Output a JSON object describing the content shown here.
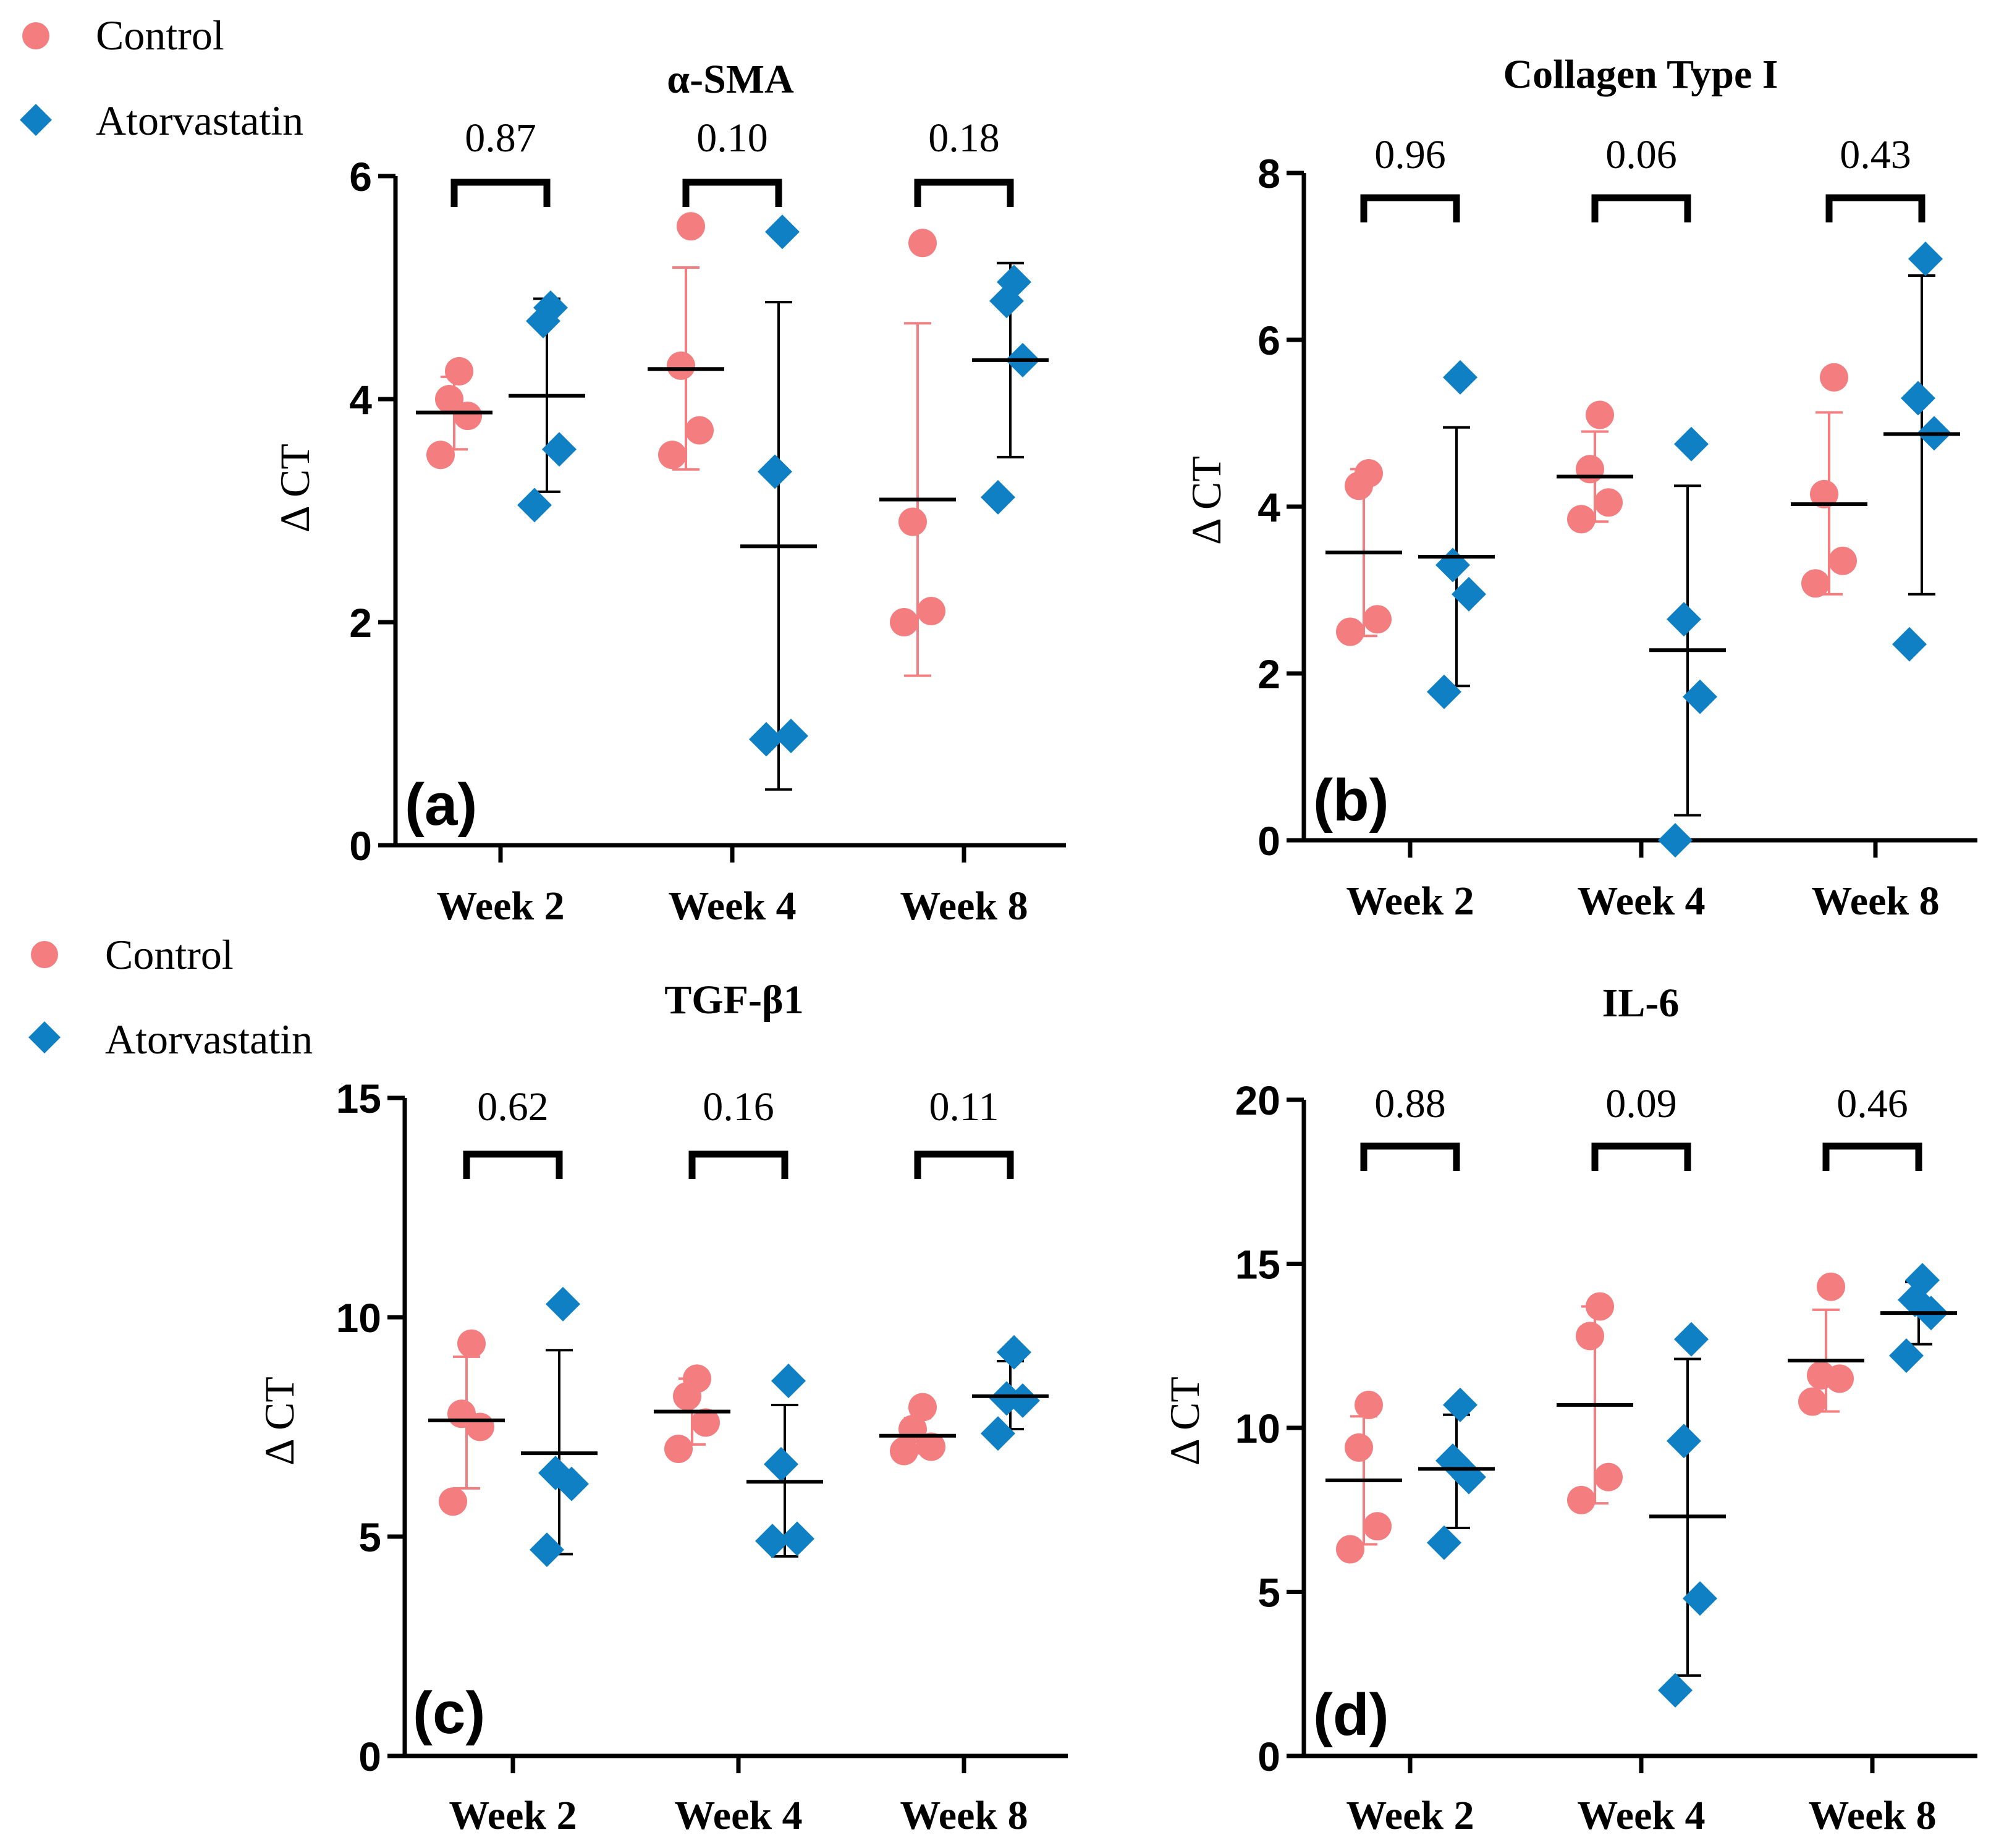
{
  "colors": {
    "control": "#f47d7f",
    "atorvastatin": "#1080c4",
    "axis": "#000000"
  },
  "legends": [
    {
      "items": [
        {
          "label": "Control",
          "marker": "circle"
        },
        {
          "label": "Atorvastatin",
          "marker": "diamond"
        }
      ]
    },
    {
      "items": [
        {
          "label": "Control",
          "marker": "circle"
        },
        {
          "label": "Atorvastatin",
          "marker": "diamond"
        }
      ]
    }
  ],
  "chart_data": [
    {
      "type": "scatter",
      "panel_label": "(a)",
      "title": "α-SMA",
      "ylabel": "Δ CT",
      "ylim": [
        0,
        6
      ],
      "yticks": [
        "0",
        "2",
        "4",
        "6"
      ],
      "categories": [
        "Week 2",
        "Week 4",
        "Week 8"
      ],
      "p_values": [
        "0.87",
        "0.10",
        "0.18"
      ],
      "series": [
        {
          "name": "Control",
          "points": [
            [
              3.5,
              3.85,
              4.0,
              4.25
            ],
            [
              3.5,
              3.72,
              4.3,
              5.55
            ],
            [
              2.0,
              2.1,
              2.9,
              5.4
            ]
          ],
          "mean": [
            3.88,
            4.27,
            3.1
          ],
          "sd_low": [
            3.55,
            3.37,
            1.52
          ],
          "sd_high": [
            4.2,
            5.18,
            4.68
          ]
        },
        {
          "name": "Atorvastatin",
          "points": [
            [
              3.05,
              3.55,
              4.7,
              4.82
            ],
            [
              0.95,
              0.98,
              3.35,
              5.5
            ],
            [
              3.12,
              4.35,
              4.88,
              5.05
            ]
          ],
          "mean": [
            4.03,
            2.68,
            4.35
          ],
          "sd_low": [
            3.17,
            0.5,
            3.48
          ],
          "sd_high": [
            4.9,
            4.87,
            5.22
          ]
        }
      ]
    },
    {
      "type": "scatter",
      "panel_label": "(b)",
      "title": "Collagen Type I",
      "ylabel": "Δ CT",
      "ylim": [
        0,
        8
      ],
      "yticks": [
        "0",
        "2",
        "4",
        "6",
        "8"
      ],
      "categories": [
        "Week 2",
        "Week 4",
        "Week 8"
      ],
      "p_values": [
        "0.96",
        "0.06",
        "0.43"
      ],
      "series": [
        {
          "name": "Control",
          "points": [
            [
              2.5,
              2.65,
              4.25,
              4.4
            ],
            [
              3.85,
              4.05,
              4.45,
              5.1
            ],
            [
              3.08,
              3.35,
              4.15,
              5.55
            ]
          ],
          "mean": [
            3.45,
            4.36,
            4.03
          ],
          "sd_low": [
            2.45,
            3.82,
            2.95
          ],
          "sd_high": [
            4.45,
            4.9,
            5.13
          ]
        },
        {
          "name": "Atorvastatin",
          "points": [
            [
              1.78,
              2.95,
              3.3,
              5.55
            ],
            [
              0.0,
              1.72,
              2.65,
              4.75
            ],
            [
              2.35,
              4.88,
              5.3,
              6.97
            ]
          ],
          "mean": [
            3.4,
            2.28,
            4.87
          ],
          "sd_low": [
            1.85,
            0.3,
            2.95
          ],
          "sd_high": [
            4.95,
            4.25,
            6.77
          ]
        }
      ]
    },
    {
      "type": "scatter",
      "panel_label": "(c)",
      "title": "TGF-β1",
      "ylabel": "Δ CT",
      "ylim": [
        0,
        15
      ],
      "yticks": [
        "0",
        "5",
        "10",
        "15"
      ],
      "categories": [
        "Week 2",
        "Week 4",
        "Week 8"
      ],
      "p_values": [
        "0.62",
        "0.16",
        "0.11"
      ],
      "series": [
        {
          "name": "Control",
          "points": [
            [
              5.8,
              7.5,
              7.8,
              9.4
            ],
            [
              7.0,
              7.6,
              8.2,
              8.6
            ],
            [
              6.95,
              7.05,
              7.45,
              7.95
            ]
          ],
          "mean": [
            7.65,
            7.85,
            7.3
          ],
          "sd_low": [
            6.1,
            7.1,
            6.9
          ],
          "sd_high": [
            9.1,
            8.6,
            7.7
          ]
        },
        {
          "name": "Atorvastatin",
          "points": [
            [
              4.7,
              6.2,
              6.45,
              10.3
            ],
            [
              4.9,
              4.95,
              6.65,
              8.55
            ],
            [
              7.35,
              8.1,
              8.15,
              9.2
            ]
          ],
          "mean": [
            6.9,
            6.25,
            8.2
          ],
          "sd_low": [
            4.6,
            4.55,
            7.45
          ],
          "sd_high": [
            9.25,
            8.0,
            9.0
          ]
        }
      ]
    },
    {
      "type": "scatter",
      "panel_label": "(d)",
      "title": "IL-6",
      "ylabel": "Δ CT",
      "ylim": [
        0,
        20
      ],
      "yticks": [
        "0",
        "5",
        "10",
        "15",
        "20"
      ],
      "categories": [
        "Week 2",
        "Week 4",
        "Week 8"
      ],
      "p_values": [
        "0.88",
        "0.09",
        "0.46"
      ],
      "series": [
        {
          "name": "Control",
          "points": [
            [
              6.3,
              7.0,
              9.4,
              10.7
            ],
            [
              7.8,
              8.5,
              12.8,
              13.7
            ],
            [
              10.8,
              11.5,
              11.6,
              14.3
            ]
          ],
          "mean": [
            8.4,
            10.7,
            12.05
          ],
          "sd_low": [
            6.45,
            7.7,
            10.5
          ],
          "sd_high": [
            10.35,
            13.7,
            13.6
          ]
        },
        {
          "name": "Atorvastatin",
          "points": [
            [
              6.5,
              8.5,
              9.0,
              10.7
            ],
            [
              2.0,
              4.8,
              9.6,
              12.7
            ],
            [
              12.2,
              13.5,
              13.9,
              14.5
            ]
          ],
          "mean": [
            8.75,
            7.3,
            13.5
          ],
          "sd_low": [
            6.95,
            2.45,
            12.55
          ],
          "sd_high": [
            10.4,
            12.1,
            14.45
          ]
        }
      ]
    }
  ]
}
